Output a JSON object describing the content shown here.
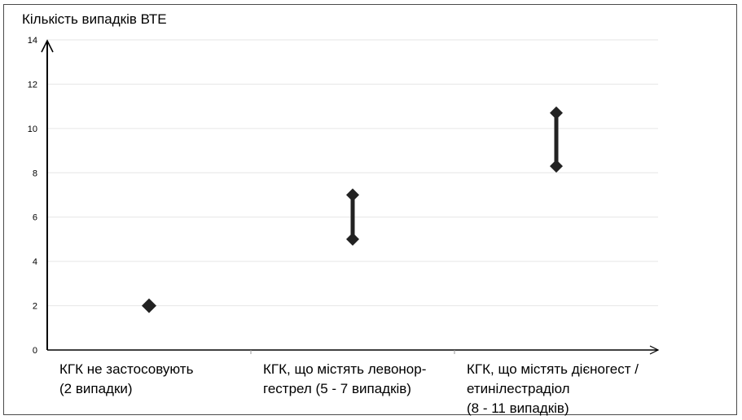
{
  "chart_data": {
    "type": "range",
    "title": "",
    "ylabel": "Кількість випадків ВТЕ",
    "ylim": [
      0,
      14
    ],
    "yticks": [
      "0",
      "2",
      "4",
      "6",
      "8",
      "10",
      "12",
      "14"
    ],
    "grid": true,
    "categories": [
      {
        "lines": [
          "КГК не застосовують",
          "(2 випадки)"
        ],
        "low": 2,
        "high": 2
      },
      {
        "lines": [
          "КГК, що містять левонор-",
          "гестрел (5 - 7 випадків)"
        ],
        "low": 5,
        "high": 7
      },
      {
        "lines": [
          "КГК, що містять дієногест /",
          "етинілестрадіол",
          "(8 - 11 випадків)"
        ],
        "low": 8.3,
        "high": 10.7
      }
    ],
    "colors": {
      "marker": "#222222",
      "grid": "#e6e6e6",
      "axis": "#000000",
      "tickmark": "#9a9a9a"
    }
  }
}
